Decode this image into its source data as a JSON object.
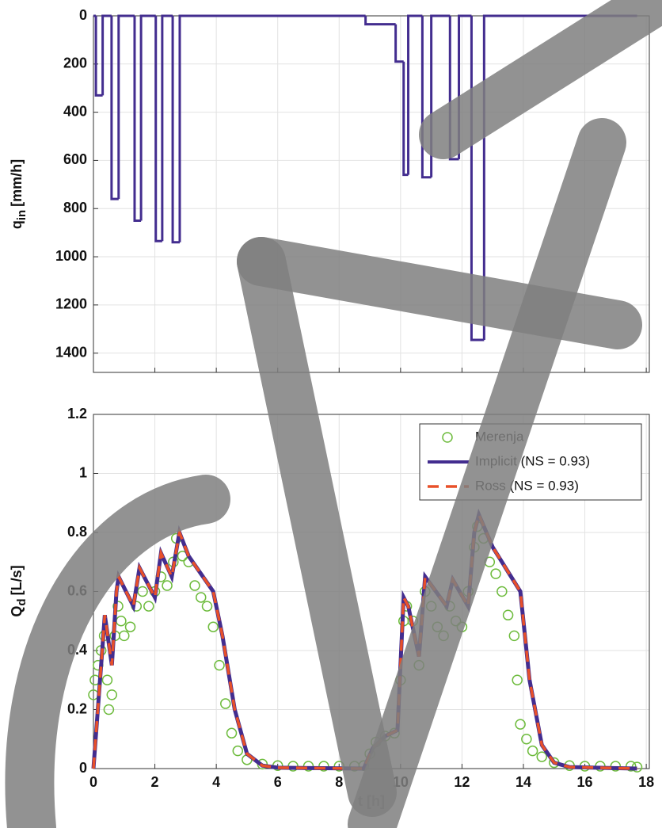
{
  "chart_data": [
    {
      "type": "step",
      "ylabel": {
        "text": "q",
        "subscript": "in",
        "unit": "[mm/h]"
      },
      "y_reversed": true,
      "xlim": [
        0,
        18.1
      ],
      "xticks": [
        0,
        2,
        4,
        6,
        8,
        10,
        12,
        14,
        16,
        18
      ],
      "ylim": [
        0,
        1480
      ],
      "yticks": [
        0,
        200,
        400,
        600,
        800,
        1000,
        1200,
        1400
      ],
      "grid": true,
      "series": [
        {
          "color": "#432d8f",
          "x": [
            0,
            0.08,
            0.3,
            0.59,
            0.82,
            1.34,
            1.55,
            2.03,
            2.24,
            2.58,
            2.81,
            8.86,
            9.84,
            10.1,
            10.25,
            10.71,
            11.0,
            11.61,
            11.9,
            12.31,
            12.72,
            17.7
          ],
          "values": [
            0,
            330,
            0,
            760,
            0,
            850,
            0,
            935,
            0,
            940,
            0,
            35,
            190,
            660,
            0,
            670,
            0,
            595,
            0,
            1345,
            0,
            0
          ]
        }
      ]
    },
    {
      "type": "line",
      "xlabel": "t [h]",
      "ylabel": {
        "text": "Q",
        "subscript": "d",
        "unit": "[L/s]"
      },
      "xlim": [
        0,
        18.1
      ],
      "xticks": [
        0,
        2,
        4,
        6,
        8,
        10,
        12,
        14,
        16,
        18
      ],
      "ylim": [
        0,
        1.2
      ],
      "yticks": [
        0,
        0.2,
        0.4,
        0.6,
        0.8,
        1,
        1.2
      ],
      "grid": true,
      "legend": "upper right",
      "series": [
        {
          "name": "Merenja",
          "color": "#6dbb3c",
          "marker": "circle",
          "x": [
            0,
            0.05,
            0.15,
            0.25,
            0.35,
            0.45,
            0.5,
            0.6,
            0.7,
            0.8,
            0.9,
            1.0,
            1.2,
            1.4,
            1.6,
            1.8,
            2.0,
            2.2,
            2.4,
            2.6,
            2.7,
            2.9,
            3.1,
            3.3,
            3.5,
            3.7,
            3.9,
            4.1,
            4.3,
            4.5,
            4.7,
            5.0,
            5.5,
            6,
            6.5,
            7,
            7.5,
            8,
            8.5,
            8.8,
            9.0,
            9.2,
            9.5,
            9.8,
            10.0,
            10.1,
            10.2,
            10.4,
            10.6,
            10.8,
            11.0,
            11.2,
            11.4,
            11.6,
            11.8,
            12.0,
            12.2,
            12.4,
            12.5,
            12.7,
            12.9,
            13.1,
            13.3,
            13.5,
            13.7,
            13.8,
            13.9,
            14.1,
            14.3,
            14.6,
            15,
            15.5,
            16,
            16.5,
            17,
            17.5,
            17.7
          ],
          "values": [
            0.25,
            0.3,
            0.35,
            0.4,
            0.45,
            0.3,
            0.2,
            0.25,
            0.45,
            0.55,
            0.5,
            0.45,
            0.48,
            0.55,
            0.6,
            0.55,
            0.6,
            0.65,
            0.62,
            0.7,
            0.78,
            0.72,
            0.7,
            0.62,
            0.58,
            0.55,
            0.48,
            0.35,
            0.22,
            0.12,
            0.06,
            0.03,
            0.015,
            0.01,
            0.008,
            0.008,
            0.008,
            0.008,
            0.008,
            0.01,
            0.05,
            0.09,
            0.11,
            0.12,
            0.3,
            0.5,
            0.55,
            0.5,
            0.35,
            0.6,
            0.55,
            0.48,
            0.45,
            0.55,
            0.5,
            0.48,
            0.6,
            0.75,
            0.82,
            0.78,
            0.7,
            0.66,
            0.6,
            0.52,
            0.45,
            0.3,
            0.15,
            0.1,
            0.06,
            0.04,
            0.02,
            0.01,
            0.008,
            0.008,
            0.008,
            0.008,
            0.005
          ]
        },
        {
          "name": "Implicit (NS = 0.93)",
          "color": "#432d8f",
          "x": [
            0,
            0.3,
            0.37,
            0.6,
            0.75,
            0.82,
            1.3,
            1.5,
            2.0,
            2.2,
            2.55,
            2.8,
            3.1,
            3.9,
            4.2,
            4.6,
            5.0,
            5.5,
            6,
            8.8,
            9.1,
            9.5,
            9.9,
            10.1,
            10.25,
            10.6,
            10.8,
            11.5,
            11.7,
            12.2,
            12.4,
            12.55,
            13.0,
            13.9,
            14.2,
            14.6,
            15,
            15.5,
            17.7
          ],
          "values": [
            0,
            0.42,
            0.52,
            0.35,
            0.6,
            0.65,
            0.55,
            0.68,
            0.58,
            0.73,
            0.65,
            0.8,
            0.72,
            0.6,
            0.45,
            0.2,
            0.05,
            0.01,
            0.003,
            0,
            0.07,
            0.11,
            0.13,
            0.58,
            0.55,
            0.38,
            0.65,
            0.55,
            0.64,
            0.55,
            0.8,
            0.86,
            0.75,
            0.6,
            0.3,
            0.08,
            0.02,
            0.005,
            0
          ]
        },
        {
          "name": "Ross (NS = 0.93)",
          "color": "#e8502a",
          "dash": true,
          "x": [
            0,
            0.3,
            0.37,
            0.6,
            0.75,
            0.82,
            1.3,
            1.5,
            2.0,
            2.2,
            2.55,
            2.8,
            3.1,
            3.9,
            4.2,
            4.6,
            5.0,
            5.5,
            6,
            8.8,
            9.1,
            9.5,
            9.9,
            10.1,
            10.25,
            10.6,
            10.8,
            11.5,
            11.7,
            12.2,
            12.4,
            12.55,
            13.0,
            13.9,
            14.2,
            14.6,
            15,
            15.5,
            17.7
          ],
          "values": [
            0,
            0.42,
            0.52,
            0.35,
            0.6,
            0.65,
            0.55,
            0.68,
            0.58,
            0.73,
            0.65,
            0.8,
            0.72,
            0.6,
            0.45,
            0.2,
            0.05,
            0.01,
            0.003,
            0,
            0.07,
            0.11,
            0.13,
            0.58,
            0.55,
            0.38,
            0.65,
            0.55,
            0.64,
            0.55,
            0.8,
            0.86,
            0.75,
            0.6,
            0.3,
            0.08,
            0.02,
            0.005,
            0
          ]
        }
      ]
    }
  ]
}
